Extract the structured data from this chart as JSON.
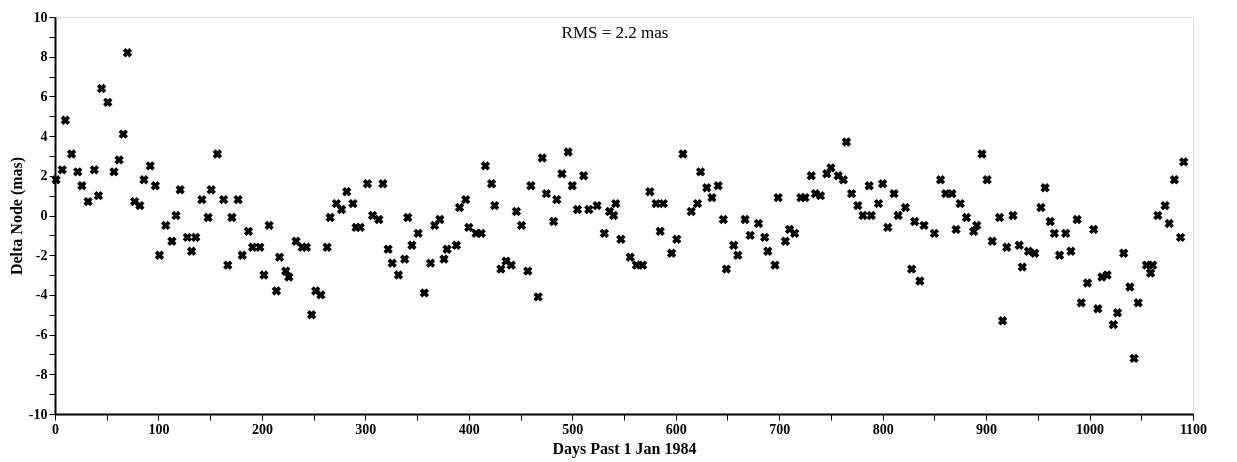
{
  "chart_data": {
    "type": "scatter",
    "xlabel": "Days Past 1 Jan 1984",
    "ylabel": "Delta Node  (mas)",
    "annotations": [
      "RMS = 2.2 mas"
    ],
    "marker": "cross",
    "grid": false,
    "xlim": [
      0,
      1100
    ],
    "ylim": [
      -10,
      10
    ],
    "xticks": [
      0,
      {
        "value": 50,
        "label": null
      },
      100,
      {
        "value": 150,
        "label": null
      },
      200,
      {
        "value": 250,
        "label": null
      },
      300,
      {
        "value": 350,
        "label": null
      },
      400,
      {
        "value": 450,
        "label": null
      },
      500,
      {
        "value": 550,
        "label": null
      },
      600,
      {
        "value": 650,
        "label": null
      },
      700,
      {
        "value": 750,
        "label": null
      },
      800,
      {
        "value": 850,
        "label": null
      },
      900,
      {
        "value": 950,
        "label": null
      },
      1000,
      {
        "value": 1050,
        "label": null
      },
      1100
    ],
    "yticks": [
      -10,
      {
        "value": -9,
        "label": null
      },
      -8,
      {
        "value": -7,
        "label": null
      },
      -6,
      {
        "value": -5,
        "label": null
      },
      -4,
      {
        "value": -3,
        "label": null
      },
      -2,
      {
        "value": -1,
        "label": null
      },
      0,
      {
        "value": 1,
        "label": null
      },
      2,
      {
        "value": 3,
        "label": null
      },
      4,
      {
        "value": 5,
        "label": null
      },
      6,
      {
        "value": 7,
        "label": null
      },
      8,
      {
        "value": 9,
        "label": null
      },
      10
    ],
    "series": [
      {
        "color": "#000000",
        "x": [
          1,
          7,
          10,
          16,
          22,
          26,
          32,
          38,
          42,
          45,
          51,
          57,
          62,
          66,
          70,
          77,
          82,
          86,
          92,
          97,
          101,
          107,
          113,
          117,
          121,
          128,
          132,
          136,
          142,
          148,
          151,
          157,
          163,
          167,
          171,
          177,
          181,
          187,
          191,
          198,
          202,
          207,
          214,
          217,
          223,
          226,
          233,
          239,
          243,
          248,
          252,
          257,
          263,
          266,
          272,
          277,
          282,
          288,
          291,
          295,
          302,
          307,
          313,
          317,
          322,
          326,
          332,
          338,
          341,
          345,
          351,
          357,
          363,
          367,
          372,
          376,
          379,
          388,
          391,
          397,
          400,
          407,
          412,
          416,
          422,
          425,
          431,
          436,
          441,
          446,
          451,
          457,
          460,
          467,
          471,
          475,
          482,
          485,
          490,
          496,
          500,
          505,
          511,
          516,
          524,
          531,
          536,
          540,
          542,
          547,
          556,
          562,
          568,
          575,
          581,
          585,
          588,
          596,
          601,
          607,
          615,
          621,
          624,
          630,
          635,
          641,
          646,
          649,
          656,
          660,
          667,
          672,
          680,
          686,
          689,
          696,
          699,
          706,
          710,
          715,
          721,
          725,
          731,
          735,
          740,
          746,
          750,
          757,
          762,
          765,
          770,
          776,
          781,
          787,
          789,
          796,
          800,
          805,
          811,
          815,
          822,
          828,
          831,
          836,
          840,
          850,
          856,
          861,
          867,
          871,
          875,
          881,
          888,
          891,
          896,
          901,
          906,
          913,
          916,
          920,
          926,
          932,
          935,
          941,
          947,
          953,
          957,
          962,
          966,
          971,
          977,
          982,
          988,
          992,
          998,
          1004,
          1008,
          1012,
          1017,
          1023,
          1027,
          1033,
          1039,
          1043,
          1047,
          1055,
          1059,
          1061,
          1066,
          1073,
          1077,
          1082,
          1088,
          1091
        ],
        "values": [
          1.8,
          2.3,
          4.8,
          3.1,
          2.2,
          1.5,
          0.7,
          2.3,
          1.0,
          6.4,
          5.7,
          2.2,
          2.8,
          4.1,
          8.2,
          0.7,
          0.5,
          1.8,
          2.5,
          1.5,
          -2.0,
          -0.5,
          -1.3,
          0.0,
          1.3,
          -1.1,
          -1.8,
          -1.1,
          0.8,
          -0.1,
          1.3,
          3.1,
          0.8,
          -2.5,
          -0.1,
          0.8,
          -2.0,
          -0.8,
          -1.6,
          -1.6,
          -3.0,
          -0.5,
          -3.8,
          -2.1,
          -2.8,
          -3.1,
          -1.3,
          -1.6,
          -1.6,
          -5.0,
          -3.8,
          -4.0,
          -1.6,
          -0.1,
          0.6,
          0.3,
          1.2,
          0.6,
          -0.6,
          -0.6,
          1.6,
          0.0,
          -0.2,
          1.6,
          -1.7,
          -2.4,
          -3.0,
          -2.2,
          -0.1,
          -1.5,
          -0.9,
          -3.9,
          -2.4,
          -0.5,
          -0.2,
          -2.2,
          -1.7,
          -1.5,
          0.4,
          0.8,
          -0.6,
          -0.9,
          -0.9,
          2.5,
          1.6,
          0.5,
          -2.7,
          -2.3,
          -2.5,
          0.2,
          -0.5,
          -2.8,
          1.5,
          -4.1,
          2.9,
          1.1,
          -0.3,
          0.8,
          2.1,
          3.2,
          1.5,
          0.3,
          2.0,
          0.3,
          0.5,
          -0.9,
          0.2,
          0.0,
          0.6,
          -1.2,
          -2.1,
          -2.5,
          -2.5,
          1.2,
          0.6,
          -0.8,
          0.6,
          -1.9,
          -1.2,
          3.1,
          0.2,
          0.6,
          2.2,
          1.4,
          0.9,
          1.5,
          -0.2,
          -2.7,
          -1.5,
          -2.0,
          -0.2,
          -1.0,
          -0.4,
          -1.1,
          -1.8,
          -2.5,
          0.9,
          -1.3,
          -0.7,
          -0.9,
          0.9,
          0.9,
          2.0,
          1.1,
          1.0,
          2.1,
          2.4,
          2.0,
          1.8,
          3.7,
          1.1,
          0.5,
          0.0,
          1.5,
          0.0,
          0.6,
          1.6,
          -0.6,
          1.1,
          0.0,
          0.4,
          -2.7,
          -0.3,
          -3.3,
          -0.5,
          -0.9,
          1.8,
          1.1,
          1.1,
          -0.7,
          0.6,
          -0.1,
          -0.8,
          -0.5,
          3.1,
          1.8,
          -1.3,
          -0.1,
          -5.3,
          -1.6,
          0.0,
          -1.5,
          -2.6,
          -1.8,
          -1.9,
          0.4,
          1.4,
          -0.3,
          -0.9,
          -2.0,
          -0.9,
          -1.8,
          -0.2,
          -4.4,
          -3.4,
          -0.7,
          -4.7,
          -3.1,
          -3.0,
          -5.5,
          -4.9,
          -1.9,
          -3.6,
          -7.2,
          -4.4,
          -2.5,
          -2.9,
          -2.5,
          0.0,
          0.5,
          -0.4,
          1.8,
          -1.1,
          2.7
        ]
      }
    ]
  }
}
